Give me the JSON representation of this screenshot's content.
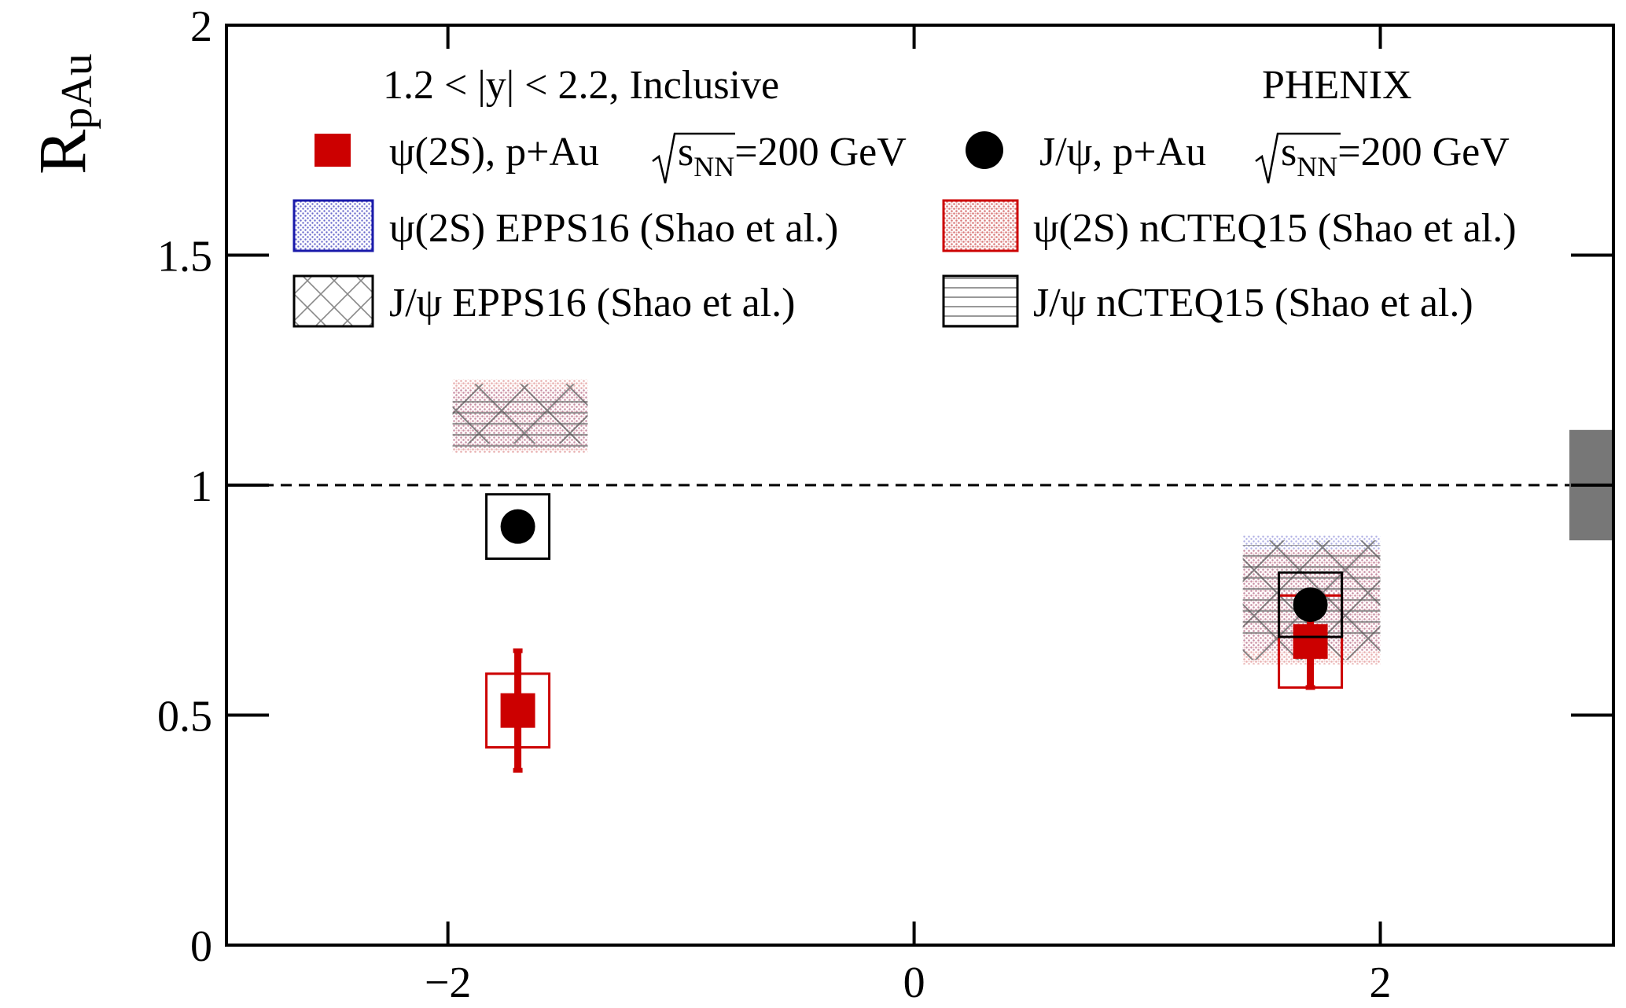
{
  "chart_data": {
    "type": "scatter",
    "experiment": "PHENIX",
    "selection": "1.2 < |y| < 2.2, Inclusive",
    "ylabel_main": "R",
    "ylabel_sub": "pAu",
    "xlim": [
      -2.95,
      3.0
    ],
    "ylim": [
      0,
      2
    ],
    "x_ticks": [
      {
        "value": -2,
        "label": "−2"
      },
      {
        "value": 0,
        "label": "0"
      },
      {
        "value": 2,
        "label": "2"
      }
    ],
    "y_ticks": [
      {
        "value": 0,
        "label": "0"
      },
      {
        "value": 0.5,
        "label": "0.5"
      },
      {
        "value": 1,
        "label": "1"
      },
      {
        "value": 1.5,
        "label": "1.5"
      },
      {
        "value": 2,
        "label": "2"
      }
    ],
    "reference_line": 1,
    "global_uncertainty": [
      0.88,
      1.12
    ],
    "series": [
      {
        "name": "ψ(2S), p+Au",
        "marker": "square",
        "color": "#cc0000",
        "points": [
          {
            "x": -1.7,
            "y": 0.51,
            "stat_low": 0.38,
            "stat_high": 0.64,
            "sys_low": 0.43,
            "sys_high": 0.59
          },
          {
            "x": 1.7,
            "y": 0.66,
            "stat_low": 0.56,
            "stat_high": 0.75,
            "sys_low": 0.56,
            "sys_high": 0.76
          }
        ]
      },
      {
        "name": "J/ψ, p+Au",
        "marker": "circle",
        "color": "#000000",
        "points": [
          {
            "x": -1.7,
            "y": 0.91,
            "stat_low": 0.9,
            "stat_high": 0.92,
            "sys_low": 0.84,
            "sys_high": 0.98
          },
          {
            "x": 1.7,
            "y": 0.74,
            "stat_low": 0.72,
            "stat_high": 0.76,
            "sys_low": 0.67,
            "sys_high": 0.81
          }
        ]
      }
    ],
    "model_bands": [
      {
        "name": "ψ(2S) EPPS16 (Shao et al.)",
        "style": "blue-dots",
        "bands": [
          {
            "x_low": -1.98,
            "x_high": -1.4,
            "y_low": 1.08,
            "y_high": 1.21
          },
          {
            "x_low": 1.41,
            "x_high": 2.0,
            "y_low": 0.64,
            "y_high": 0.89
          }
        ]
      },
      {
        "name": "ψ(2S) nCTEQ15 (Shao et al.)",
        "style": "red-dots",
        "bands": [
          {
            "x_low": -1.98,
            "x_high": -1.4,
            "y_low": 1.07,
            "y_high": 1.23
          },
          {
            "x_low": 1.41,
            "x_high": 2.0,
            "y_low": 0.61,
            "y_high": 0.86
          }
        ]
      },
      {
        "name": "J/ψ EPPS16 (Shao et al.)",
        "style": "cross-hatch",
        "bands": [
          {
            "x_low": -1.98,
            "x_high": -1.4,
            "y_low": 1.09,
            "y_high": 1.22
          },
          {
            "x_low": 1.41,
            "x_high": 2.0,
            "y_low": 0.62,
            "y_high": 0.88
          }
        ]
      },
      {
        "name": "J/ψ nCTEQ15 (Shao et al.)",
        "style": "horizontal-lines",
        "bands": [
          {
            "x_low": -1.98,
            "x_high": -1.4,
            "y_low": 1.08,
            "y_high": 1.2
          },
          {
            "x_low": 1.41,
            "x_high": 2.0,
            "y_low": 0.66,
            "y_high": 0.87
          }
        ]
      }
    ]
  },
  "legend": {
    "header_left": "1.2 < |y| < 2.2, Inclusive",
    "header_right": "PHENIX",
    "energy_label": "=200 GeV",
    "energy_sub": "NN",
    "energy_s": "s",
    "psi2s_data": "ψ(2S), p+Au",
    "jpsi_data": "J/ψ, p+Au",
    "psi2s_epps16": "ψ(2S) EPPS16 (Shao et al.)",
    "psi2s_ncteq15": "ψ(2S) nCTEQ15 (Shao et al.)",
    "jpsi_epps16": "J/ψ EPPS16 (Shao et al.)",
    "jpsi_ncteq15": "J/ψ nCTEQ15 (Shao et al.)"
  },
  "colors": {
    "psi2s": "#cc0000",
    "jpsi": "#000000",
    "epps16_blue": "#3333bb",
    "global_box": "#777777"
  }
}
